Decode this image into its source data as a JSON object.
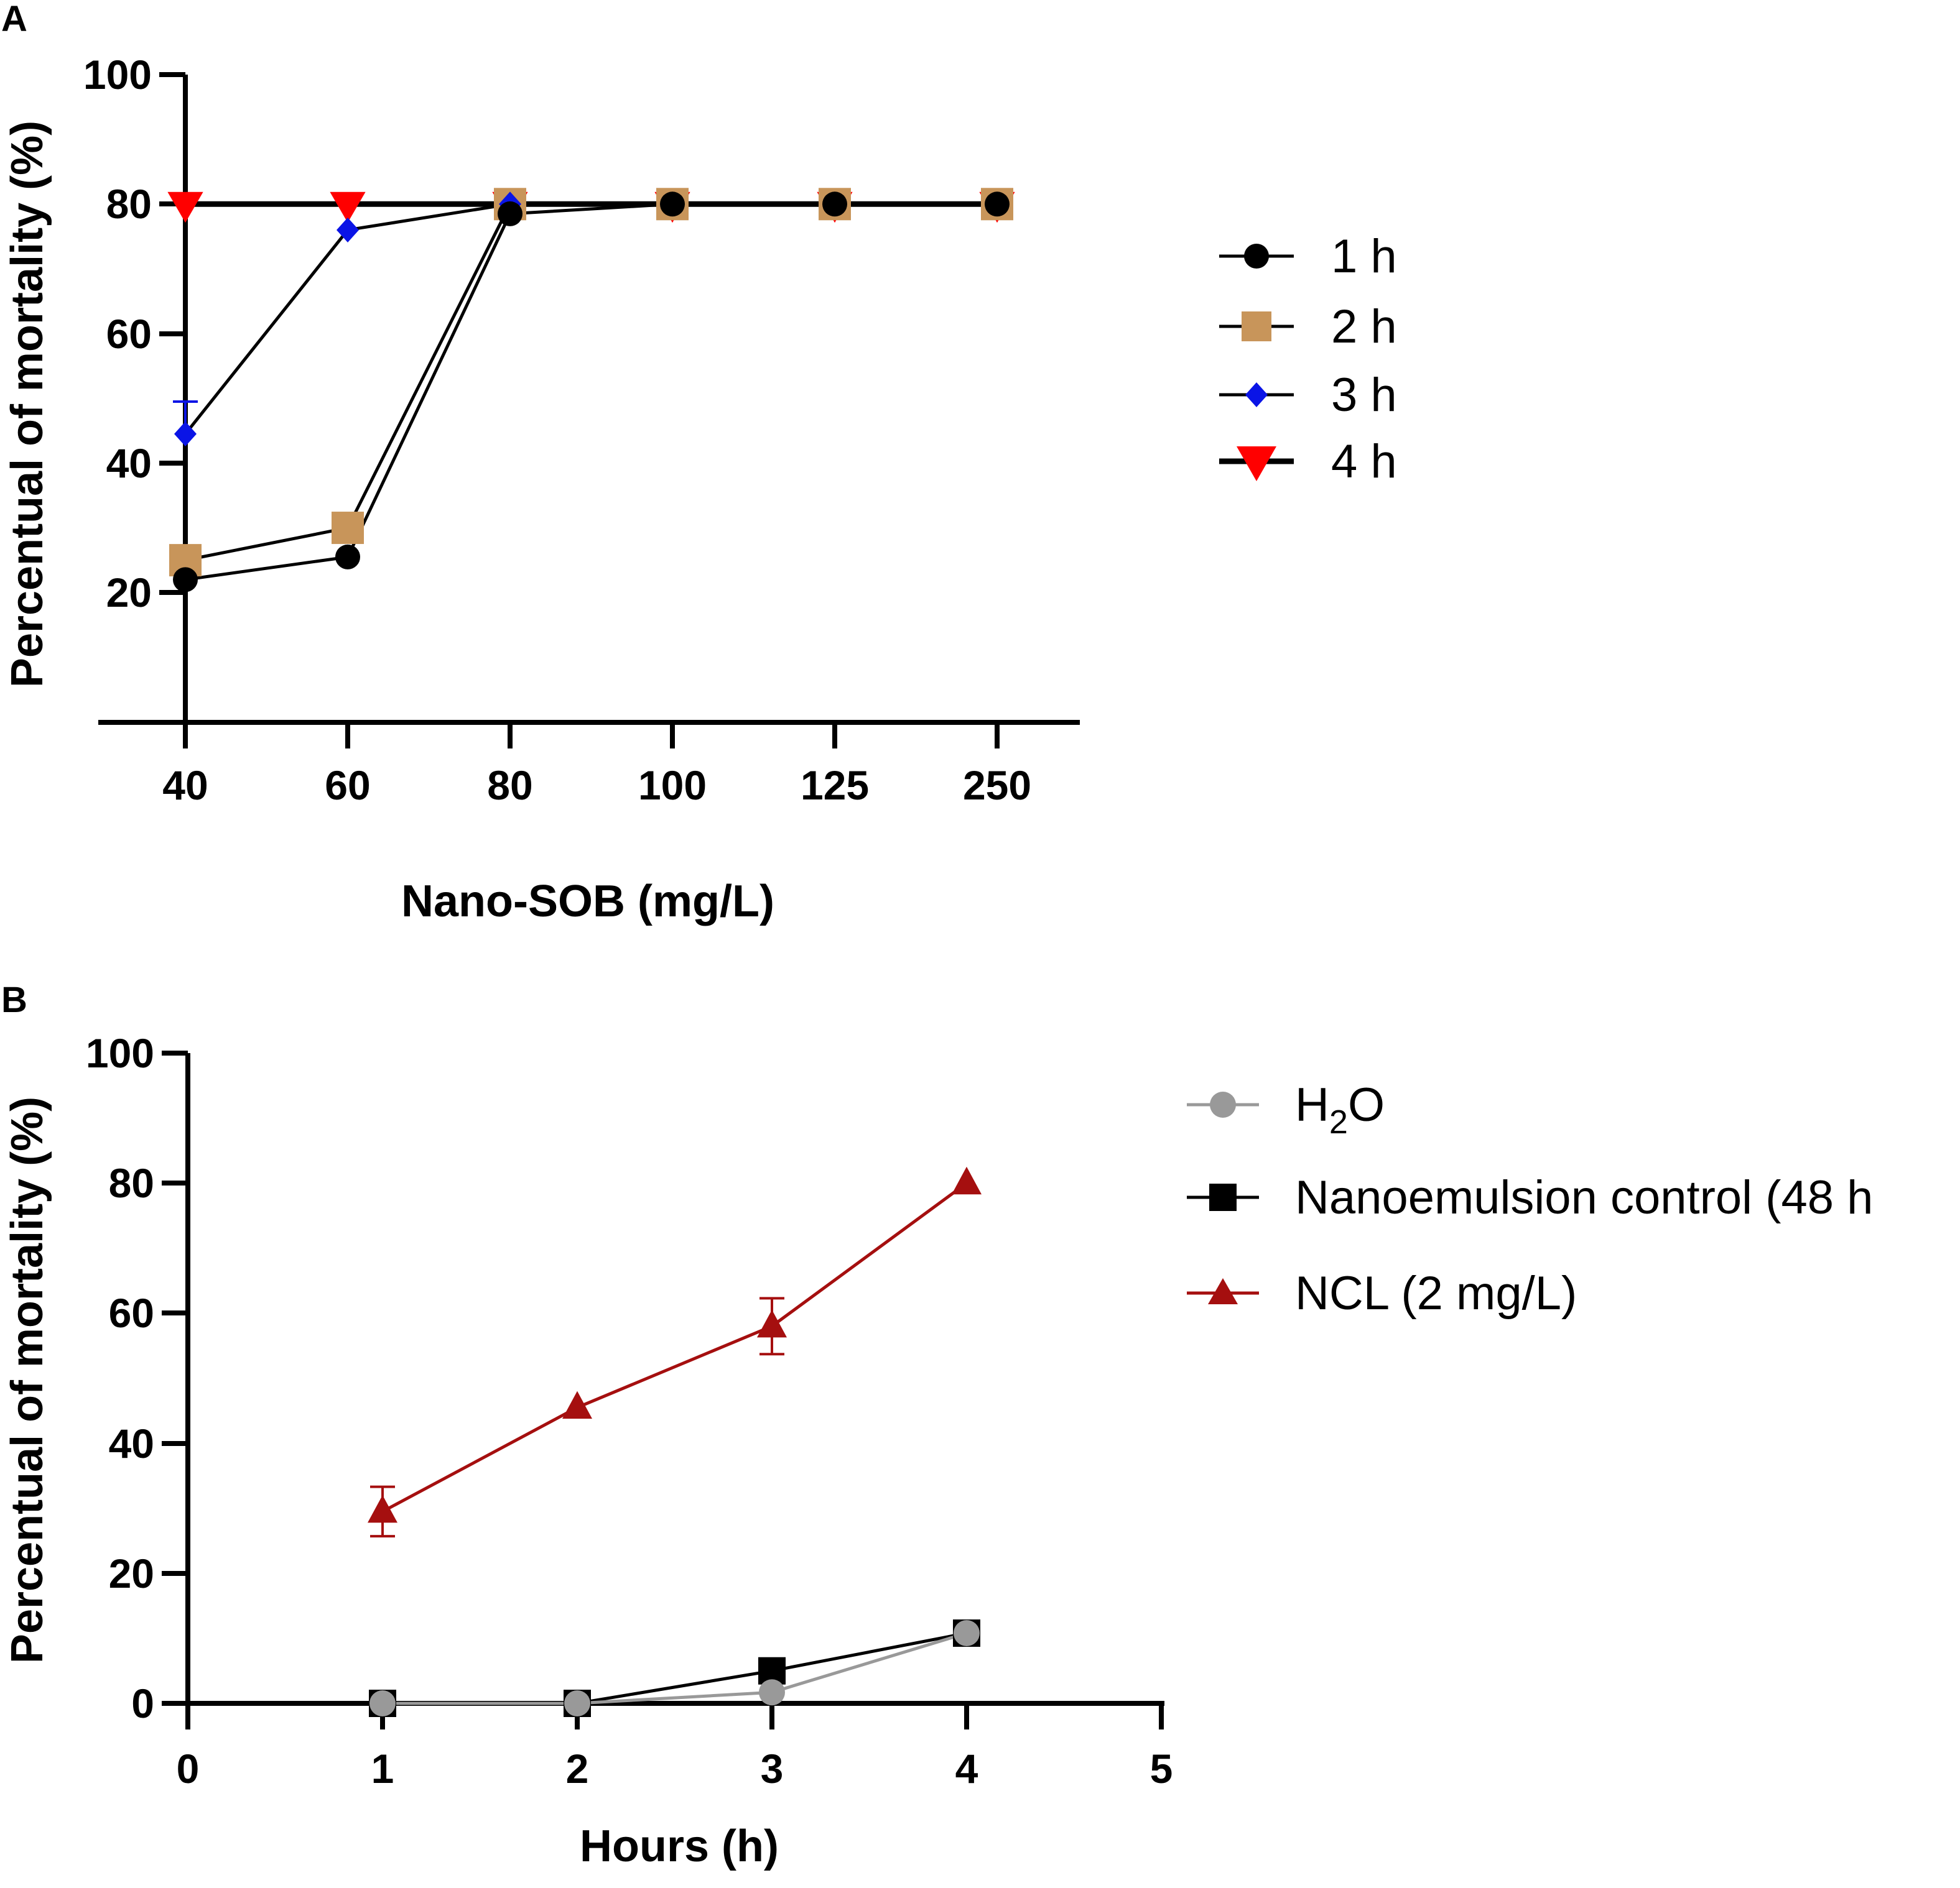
{
  "chart_data": [
    {
      "panel": "A",
      "type": "line",
      "title": "",
      "xlabel": "Nano-SOB (mg/L)",
      "ylabel": "Percentual of mortality (%)",
      "categories": [
        "40",
        "60",
        "80",
        "100",
        "125",
        "250"
      ],
      "ylim": [
        0,
        100
      ],
      "yticks": [
        20,
        40,
        60,
        80,
        100
      ],
      "legend_position": "right",
      "series": [
        {
          "name": "1 h",
          "color": "#000000",
          "marker": "circle",
          "values": [
            22,
            25.5,
            78.5,
            80,
            80,
            80
          ],
          "err_up": [
            0,
            0,
            0,
            0,
            0,
            0
          ]
        },
        {
          "name": "2 h",
          "color": "#C8955A",
          "marker": "square",
          "values": [
            25,
            30,
            80,
            80,
            80,
            80
          ],
          "err_up": [
            0,
            0,
            0,
            0,
            0,
            0
          ]
        },
        {
          "name": "3 h",
          "color": "#0A14E6",
          "marker": "diamond",
          "values": [
            44.5,
            76,
            80,
            80,
            80,
            80
          ],
          "err_up": [
            5,
            0,
            0,
            0,
            0,
            0
          ]
        },
        {
          "name": "4 h",
          "color": "#FF0000",
          "marker": "triangle-down",
          "values": [
            80,
            80,
            80,
            80,
            80,
            80
          ],
          "err_up": [
            0,
            0,
            0,
            0,
            0,
            0
          ]
        }
      ]
    },
    {
      "panel": "B",
      "type": "line",
      "title": "",
      "xlabel": "Hours (h)",
      "ylabel": "Percentual of mortality (%)",
      "xlim": [
        0,
        5
      ],
      "xticks": [
        0,
        1,
        2,
        3,
        4,
        5
      ],
      "ylim": [
        0,
        100
      ],
      "yticks": [
        0,
        20,
        40,
        60,
        80,
        100
      ],
      "legend_position": "right",
      "series": [
        {
          "name_main": "H",
          "name_sub": "2",
          "name_tail": "O",
          "color": "#999999",
          "marker": "circle",
          "x": [
            1,
            2,
            3,
            4
          ],
          "values": [
            0,
            0,
            1.7,
            10.8
          ],
          "err": [
            0,
            0,
            0,
            0
          ]
        },
        {
          "name": "Nanoemulsion control (48 h",
          "color": "#000000",
          "marker": "square",
          "x": [
            1,
            2,
            3,
            4
          ],
          "values": [
            0,
            0,
            5,
            10.8
          ],
          "err": [
            0,
            0,
            0,
            0
          ]
        },
        {
          "name": "NCL (2 mg/L)",
          "color": "#A50F0F",
          "marker": "triangle-up",
          "x": [
            1,
            2,
            3,
            4
          ],
          "values": [
            29.5,
            45.5,
            58,
            80
          ],
          "err": [
            3.8,
            0,
            4.3,
            0
          ]
        }
      ]
    }
  ]
}
